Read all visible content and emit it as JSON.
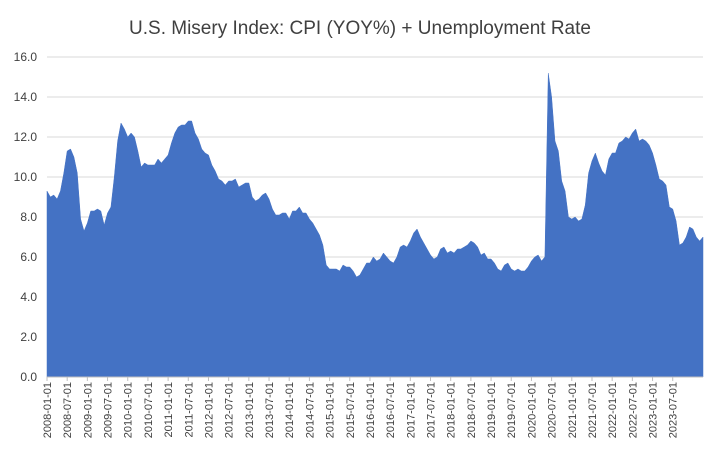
{
  "chart_data": {
    "type": "area",
    "title": "U.S. Misery Index: CPI (YOY%) + Unemployment Rate",
    "xlabel": "",
    "ylabel": "",
    "ylim": [
      0,
      16
    ],
    "yticks": [
      "0.0",
      "2.0",
      "4.0",
      "6.0",
      "8.0",
      "10.0",
      "12.0",
      "14.0",
      "16.0"
    ],
    "grid": true,
    "legend": "none",
    "color": "#4472C4",
    "xtick_labels": [
      "2008-01-01",
      "2008-07-01",
      "2009-01-01",
      "2009-07-01",
      "2010-01-01",
      "2010-07-01",
      "2011-01-01",
      "2011-07-01",
      "2012-01-01",
      "2012-07-01",
      "2013-01-01",
      "2013-07-01",
      "2014-01-01",
      "2014-07-01",
      "2015-01-01",
      "2015-07-01",
      "2016-01-01",
      "2016-07-01",
      "2017-01-01",
      "2017-07-01",
      "2018-01-01",
      "2018-07-01",
      "2019-01-01",
      "2019-07-01",
      "2020-01-01",
      "2020-07-01",
      "2021-01-01",
      "2021-07-01",
      "2022-01-01",
      "2022-07-01",
      "2023-01-01",
      "2023-07-01"
    ],
    "series": [
      {
        "name": "Misery Index",
        "start": "2008-01",
        "values": [
          9.3,
          9.0,
          9.1,
          8.9,
          9.3,
          10.2,
          11.3,
          11.4,
          11.0,
          10.2,
          7.9,
          7.3,
          7.7,
          8.3,
          8.3,
          8.4,
          8.3,
          7.6,
          8.2,
          8.5,
          10.0,
          11.8,
          12.7,
          12.4,
          12.0,
          12.2,
          12.0,
          11.3,
          10.5,
          10.7,
          10.6,
          10.6,
          10.6,
          10.9,
          10.7,
          10.9,
          11.1,
          11.7,
          12.2,
          12.5,
          12.6,
          12.6,
          12.8,
          12.8,
          12.2,
          11.9,
          11.4,
          11.2,
          11.1,
          10.6,
          10.3,
          9.9,
          9.8,
          9.6,
          9.8,
          9.8,
          9.9,
          9.5,
          9.6,
          9.7,
          9.7,
          9.0,
          8.8,
          8.9,
          9.1,
          9.2,
          8.9,
          8.4,
          8.1,
          8.1,
          8.2,
          8.2,
          7.9,
          8.3,
          8.3,
          8.5,
          8.2,
          8.2,
          7.9,
          7.7,
          7.4,
          7.1,
          6.6,
          5.6,
          5.4,
          5.4,
          5.4,
          5.3,
          5.6,
          5.5,
          5.5,
          5.3,
          5.0,
          5.1,
          5.4,
          5.7,
          5.7,
          6.0,
          5.8,
          5.9,
          6.2,
          6.0,
          5.8,
          5.7,
          6.0,
          6.5,
          6.6,
          6.5,
          6.8,
          7.2,
          7.4,
          7.0,
          6.7,
          6.4,
          6.1,
          5.9,
          6.0,
          6.4,
          6.5,
          6.2,
          6.3,
          6.2,
          6.4,
          6.4,
          6.5,
          6.6,
          6.8,
          6.7,
          6.5,
          6.1,
          6.2,
          5.9,
          5.9,
          5.7,
          5.4,
          5.3,
          5.6,
          5.7,
          5.4,
          5.3,
          5.4,
          5.3,
          5.3,
          5.5,
          5.8,
          6.0,
          6.1,
          5.8,
          6.0,
          15.2,
          14.0,
          11.8,
          11.3,
          9.8,
          9.3,
          8.0,
          7.9,
          8.0,
          7.8,
          7.9,
          8.6,
          10.2,
          10.8,
          11.2,
          10.7,
          10.3,
          10.1,
          10.9,
          11.2,
          11.2,
          11.7,
          11.8,
          12.0,
          11.9,
          12.2,
          12.4,
          11.8,
          11.9,
          11.8,
          11.6,
          11.2,
          10.6,
          9.9,
          9.8,
          9.6,
          8.5,
          8.4,
          7.8,
          6.6,
          6.7,
          7.0,
          7.5,
          7.4,
          7.0,
          6.8,
          7.0
        ]
      }
    ]
  }
}
